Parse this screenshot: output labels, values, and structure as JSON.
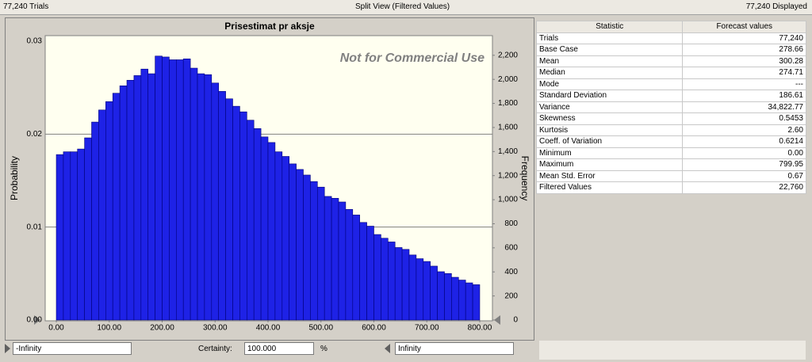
{
  "status_bar": {
    "left": "77,240 Trials",
    "center": "Split View (Filtered Values)",
    "right": "77,240 Displayed"
  },
  "chart_data": {
    "type": "histogram",
    "title": "Prisestimat pr aksje",
    "watermark": "Not for Commercial Use",
    "y_label": "Probability",
    "y2_label": "Frequency",
    "color": "#1e22e6",
    "bins": [
      0,
      13.33,
      26.67,
      40,
      53.33,
      66.67,
      80,
      93.33,
      106.67,
      120,
      133.33,
      146.67,
      160,
      173.33,
      186.67,
      200,
      213.33,
      226.67,
      240,
      253.33,
      266.67,
      280,
      293.33,
      306.67,
      320,
      333.33,
      346.67,
      360,
      373.33,
      386.67,
      400,
      413.33,
      426.67,
      440,
      453.33,
      466.67,
      480,
      493.33,
      506.67,
      520,
      533.33,
      546.67,
      560,
      573.33,
      586.67,
      600,
      613.33,
      626.67,
      640,
      653.33,
      666.67,
      680,
      693.33,
      706.67,
      720,
      733.33,
      746.67,
      760,
      773.33,
      786.67,
      800
    ],
    "values": [
      0.0178,
      0.0181,
      0.0181,
      0.0184,
      0.0196,
      0.0213,
      0.0226,
      0.0235,
      0.0244,
      0.0252,
      0.0258,
      0.0263,
      0.027,
      0.0265,
      0.0284,
      0.0283,
      0.028,
      0.028,
      0.0281,
      0.0271,
      0.0265,
      0.0264,
      0.0255,
      0.0246,
      0.0238,
      0.023,
      0.0224,
      0.0215,
      0.0206,
      0.0197,
      0.0191,
      0.0181,
      0.0176,
      0.0168,
      0.0162,
      0.0156,
      0.0149,
      0.0143,
      0.0133,
      0.0131,
      0.0127,
      0.0119,
      0.0113,
      0.0105,
      0.0101,
      0.0092,
      0.0088,
      0.0084,
      0.0078,
      0.0076,
      0.007,
      0.0066,
      0.0063,
      0.0058,
      0.0052,
      0.005,
      0.0046,
      0.0043,
      0.004,
      0.0038
    ],
    "xlim": [
      -21,
      824
    ],
    "xticks": [
      {
        "value": 0,
        "label": "0.00"
      },
      {
        "value": 100,
        "label": "100.00"
      },
      {
        "value": 200,
        "label": "200.00"
      },
      {
        "value": 300,
        "label": "300.00"
      },
      {
        "value": 400,
        "label": "400.00"
      },
      {
        "value": 500,
        "label": "500.00"
      },
      {
        "value": 600,
        "label": "600.00"
      },
      {
        "value": 700,
        "label": "700.00"
      },
      {
        "value": 800,
        "label": "800.00"
      }
    ],
    "ylim": [
      0,
      0.03
    ],
    "yticks": [
      {
        "value": 0,
        "label": "0.00"
      },
      0.01,
      0.02,
      0.03
    ],
    "y2lim": [
      0,
      2317.2
    ],
    "y2ticks": [
      0,
      200,
      400,
      600,
      800,
      {
        "value": 1000,
        "label": "1,000"
      },
      {
        "value": 1200,
        "label": "1,200"
      },
      {
        "value": 1400,
        "label": "1,400"
      },
      {
        "value": 1600,
        "label": "1,600"
      },
      {
        "value": 1800,
        "label": "1,800"
      },
      {
        "value": 2000,
        "label": "2,000"
      },
      {
        "value": 2200,
        "label": "2,200"
      }
    ],
    "grid": true
  },
  "statistics": {
    "header": [
      "Statistic",
      "Forecast values"
    ],
    "rows": [
      [
        "Trials",
        "77,240"
      ],
      [
        "Base Case",
        "278.66"
      ],
      [
        "Mean",
        "300.28"
      ],
      [
        "Median",
        "274.71"
      ],
      [
        "Mode",
        "---"
      ],
      [
        "Standard Deviation",
        "186.61"
      ],
      [
        "Variance",
        "34,822.77"
      ],
      [
        "Skewness",
        "0.5453"
      ],
      [
        "Kurtosis",
        "2.60"
      ],
      [
        "Coeff. of Variation",
        "0.6214"
      ],
      [
        "Minimum",
        "0.00"
      ],
      [
        "Maximum",
        "799.95"
      ],
      [
        "Mean Std. Error",
        "0.67"
      ],
      [
        "Filtered Values",
        "22,760"
      ]
    ]
  },
  "controls": {
    "lower": "-Infinity",
    "certainty_label": "Certainty:",
    "certainty": "100.000",
    "unit": "%",
    "upper": "Infinity"
  }
}
